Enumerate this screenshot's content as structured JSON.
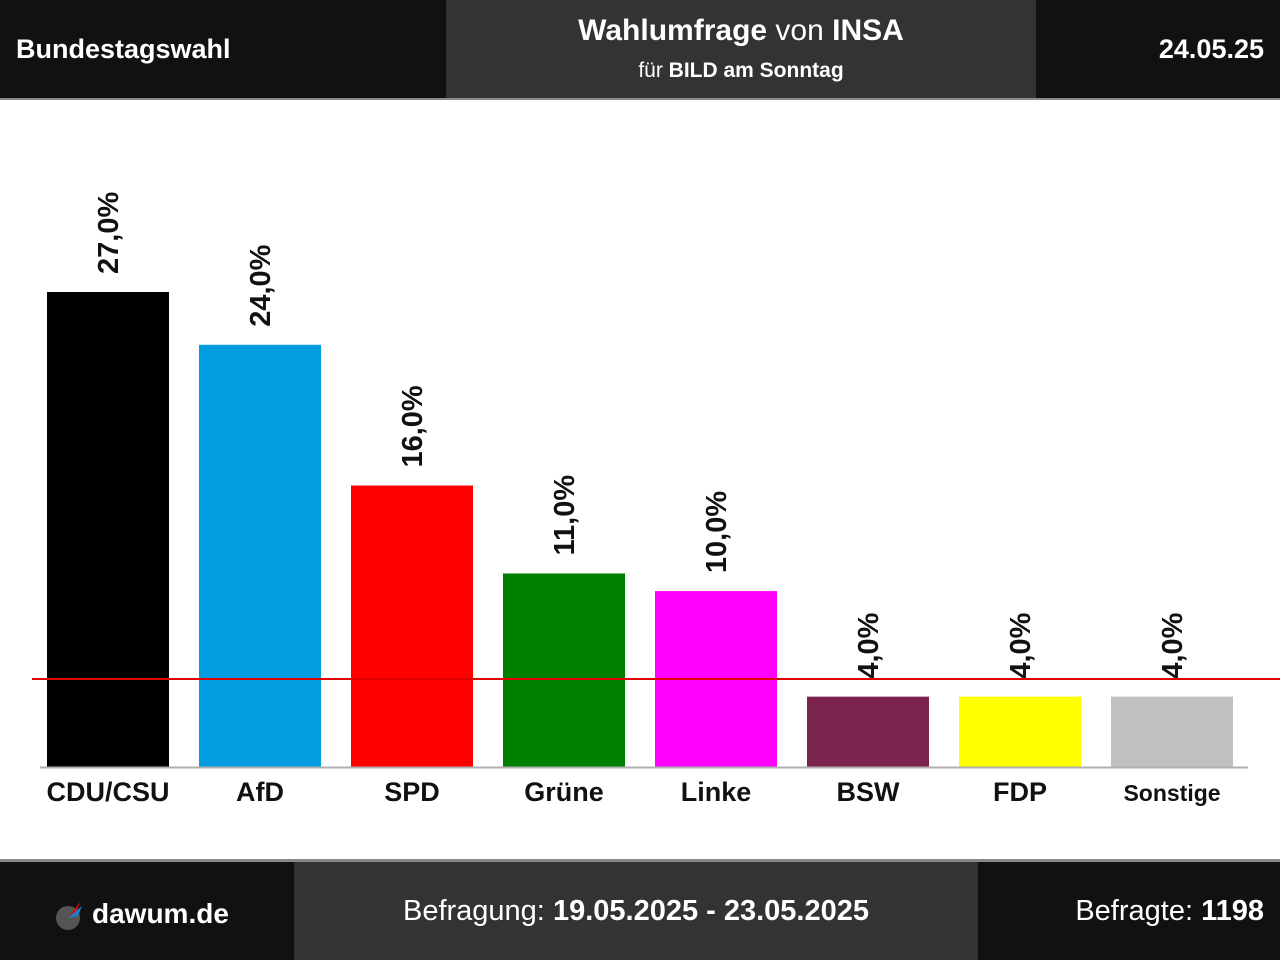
{
  "header": {
    "left": "Bundestagswahl",
    "title_bold": "Wahlumfrage",
    "title_mid": " von ",
    "title_institute": "INSA",
    "sub_prefix": "für ",
    "sub_client": "BILD am Sonntag",
    "date": "24.05.25"
  },
  "footer": {
    "brand": "dawum.de",
    "survey_label": "Befragung: ",
    "survey_period": "19.05.2025 - 23.05.2025",
    "respondents_label": "Befragte: ",
    "respondents": "1198"
  },
  "chart_data": {
    "type": "bar",
    "categories": [
      "CDU/CSU",
      "AfD",
      "SPD",
      "Grüne",
      "Linke",
      "BSW",
      "FDP",
      "Sonstige"
    ],
    "values": [
      27.0,
      24.0,
      16.0,
      11.0,
      10.0,
      4.0,
      4.0,
      4.0
    ],
    "value_labels": [
      "27,0%",
      "24,0%",
      "16,0%",
      "11,0%",
      "10,0%",
      "4,0%",
      "4,0%",
      "4,0%"
    ],
    "colors": [
      "#000000",
      "#009ee0",
      "#ff0000",
      "#008000",
      "#ff00ff",
      "#7b2450",
      "#ffff00",
      "#c0c0c0"
    ],
    "threshold": 5,
    "threshold_color": "#e00000",
    "ylim": [
      0,
      27
    ]
  }
}
